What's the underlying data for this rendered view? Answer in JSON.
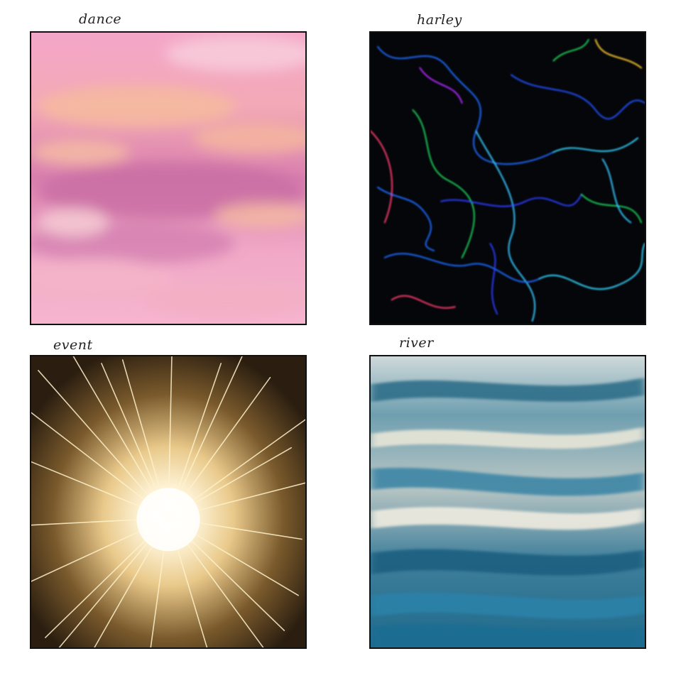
{
  "tiles": [
    {
      "label": "dance"
    },
    {
      "label": "harley"
    },
    {
      "label": "event"
    },
    {
      "label": "river"
    }
  ]
}
